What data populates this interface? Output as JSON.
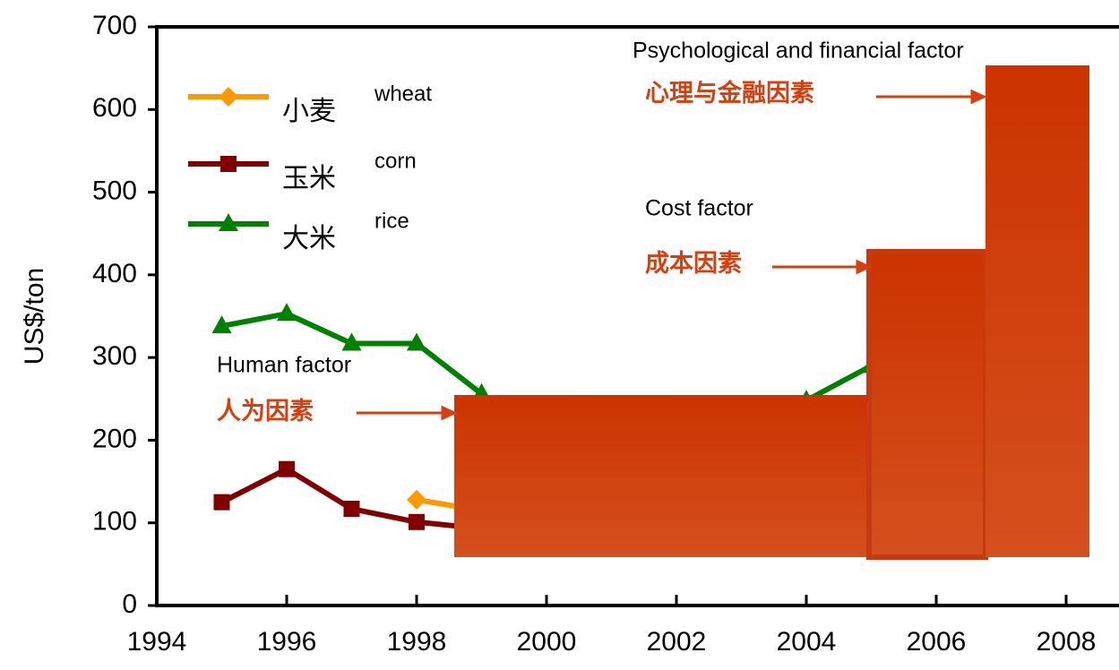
{
  "chart_data": {
    "type": "line",
    "y_label": "US$/ton",
    "x": [
      1995,
      1996,
      1997,
      1998,
      1999,
      2000,
      2001,
      2002,
      2003,
      2004,
      2005
    ],
    "series": [
      {
        "name": "小麦",
        "label": "wheat",
        "color": "#ff9900",
        "marker": "diamond",
        "values": [
          null,
          null,
          null,
          128,
          115,
          null,
          null,
          null,
          null,
          null,
          null
        ]
      },
      {
        "name": "玉米",
        "label": "corn",
        "color": "#800000",
        "marker": "square",
        "values": [
          125,
          165,
          117,
          101,
          93,
          null,
          null,
          null,
          null,
          null,
          null
        ]
      },
      {
        "name": "大米",
        "label": "rice",
        "color": "#008000",
        "marker": "triangle",
        "values": [
          338,
          353,
          317,
          317,
          256,
          null,
          null,
          null,
          null,
          248,
          290
        ]
      }
    ],
    "xlim": [
      1994,
      2008.8
    ],
    "xticks": [
      1994,
      1996,
      1998,
      2000,
      2002,
      2004,
      2006,
      2008
    ],
    "ylim": [
      0,
      700
    ],
    "yticks": [
      0,
      100,
      200,
      300,
      400,
      500,
      600,
      700
    ],
    "annotations": [
      {
        "text": "Psychological and financial factor",
        "label": "心理与金融因素"
      },
      {
        "text": "Cost factor",
        "label": "成本因素"
      },
      {
        "text": "Human factor",
        "label": "人为因素"
      }
    ]
  }
}
